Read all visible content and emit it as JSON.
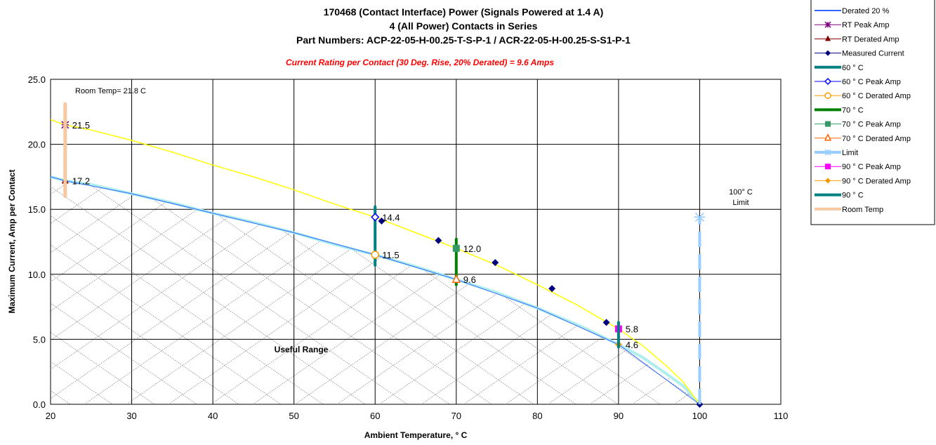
{
  "chart_data": {
    "type": "scatter",
    "title": "170468 (Contact Interface) Power (Signals Powered at 1.4 A)",
    "title_line2": "4 (All Power) Contacts in Series",
    "title_line3": "Part Numbers: ACP-22-05-H-00.25-T-S-P-1 / ACR-22-05-H-00.25-S-S1-P-1",
    "subtitle": "Current Rating per Contact (30 Deg. Rise, 20% Derated)  = 9.6 Amps",
    "xlabel": "Ambient Temperature,  ° C",
    "ylabel": "Maximum Current, Amp per Contact",
    "xlim": [
      20,
      110
    ],
    "ylim": [
      0,
      25
    ],
    "x_ticks": [
      "20",
      "30",
      "40",
      "50",
      "60",
      "70",
      "80",
      "90",
      "100",
      "110"
    ],
    "x_tick_values": [
      20,
      30,
      40,
      50,
      60,
      70,
      80,
      90,
      100,
      110
    ],
    "y_ticks": [
      "0.0",
      "5.0",
      "10.0",
      "15.0",
      "20.0",
      "25.0"
    ],
    "y_tick_values": [
      0,
      5,
      10,
      15,
      20,
      25
    ],
    "grid": true,
    "legend_position": "top-right",
    "annotations": {
      "room_temp": "Room Temp= 21.8 C",
      "limit_line1": "100° C",
      "limit_line2": "Limit",
      "useful_range": "Useful Range"
    },
    "curves": {
      "peak_curve": {
        "color": "#ffff00",
        "x": [
          20,
          21.8,
          25,
          30,
          35,
          40,
          45,
          50,
          55,
          60,
          65,
          70,
          75,
          80,
          85,
          90,
          93,
          96,
          98,
          100
        ],
        "y": [
          21.9,
          21.5,
          21.1,
          20.3,
          19.4,
          18.4,
          17.5,
          16.5,
          15.4,
          14.4,
          13.2,
          12.0,
          10.7,
          9.2,
          7.6,
          5.8,
          4.5,
          2.9,
          1.7,
          0
        ]
      },
      "derated_curve": {
        "color": "#aeeeee",
        "x": [
          20,
          21.8,
          25,
          30,
          35,
          40,
          45,
          50,
          55,
          60,
          65,
          70,
          75,
          80,
          85,
          90,
          93,
          96,
          98,
          100
        ],
        "y": [
          17.5,
          17.2,
          16.9,
          16.2,
          15.5,
          14.7,
          14.0,
          13.2,
          12.3,
          11.5,
          10.6,
          9.6,
          8.6,
          7.4,
          6.1,
          4.6,
          3.6,
          2.3,
          1.4,
          0
        ]
      }
    },
    "series": [
      {
        "name": "Derated 20 %",
        "color": "#3366ff",
        "style": "line",
        "x": [
          20,
          21.8,
          30,
          40,
          50,
          60,
          70,
          80,
          90,
          100
        ],
        "y": [
          17.5,
          17.2,
          16.2,
          14.7,
          13.2,
          11.5,
          9.6,
          7.4,
          4.6,
          0
        ]
      },
      {
        "name": "RT Peak Amp",
        "color": "#800080",
        "marker": "star",
        "x": [
          21.8
        ],
        "y": [
          21.5
        ],
        "labels": [
          "21.5"
        ]
      },
      {
        "name": "RT Derated Amp",
        "color": "#800000",
        "marker": "triangle-filled",
        "x": [
          21.8
        ],
        "y": [
          17.2
        ],
        "labels": [
          "17.2"
        ]
      },
      {
        "name": "Measured Current",
        "color": "#000080",
        "marker": "diamond-filled",
        "x": [
          60.8,
          67.8,
          74.8,
          81.8,
          88.5,
          100
        ],
        "y": [
          14.1,
          12.6,
          10.9,
          8.9,
          6.3,
          0
        ]
      },
      {
        "name": "60 ° C",
        "color": "#008080",
        "style": "vline",
        "x": [
          60,
          60
        ],
        "y": [
          10.7,
          15.2
        ]
      },
      {
        "name": "60  ° C Peak Amp",
        "color": "#0000ff",
        "marker": "diamond-open",
        "x": [
          60
        ],
        "y": [
          14.4
        ],
        "labels": [
          "14.4"
        ]
      },
      {
        "name": "60  ° C Derated Amp",
        "color": "#ff9900",
        "marker": "circle-open",
        "x": [
          60
        ],
        "y": [
          11.5
        ],
        "labels": [
          "11.5"
        ]
      },
      {
        "name": "70  ° C",
        "color": "#008000",
        "style": "vline",
        "x": [
          70,
          70
        ],
        "y": [
          9.2,
          12.7
        ]
      },
      {
        "name": "70  ° C Peak Amp",
        "color": "#339966",
        "marker": "square-filled",
        "x": [
          70
        ],
        "y": [
          12.0
        ],
        "labels": [
          "12.0"
        ]
      },
      {
        "name": "70  ° C Derated Amp",
        "color": "#ff6600",
        "marker": "triangle-open",
        "x": [
          70
        ],
        "y": [
          9.6
        ],
        "labels": [
          "9.6"
        ]
      },
      {
        "name": "Limit",
        "color": "#99ccff",
        "style": "dashed-vline",
        "x": [
          100,
          100
        ],
        "y": [
          0,
          14.4
        ]
      },
      {
        "name": "90  ° C Peak Amp",
        "color": "#ff00ff",
        "marker": "square-filled",
        "x": [
          90
        ],
        "y": [
          5.8
        ],
        "labels": [
          "5.8"
        ]
      },
      {
        "name": "90  ° C Derated Amp",
        "color": "#ff9900",
        "marker": "diamond-filled",
        "x": [
          90
        ],
        "y": [
          4.6
        ],
        "labels": [
          "4.6"
        ]
      },
      {
        "name": "90  ° C",
        "color": "#008080",
        "style": "vline",
        "x": [
          90,
          90
        ],
        "y": [
          4.4,
          6.3
        ]
      },
      {
        "name": "Room Temp",
        "color": "#f8c8a0",
        "style": "vline",
        "x": [
          21.8,
          21.8
        ],
        "y": [
          16.0,
          23.1
        ]
      }
    ]
  }
}
